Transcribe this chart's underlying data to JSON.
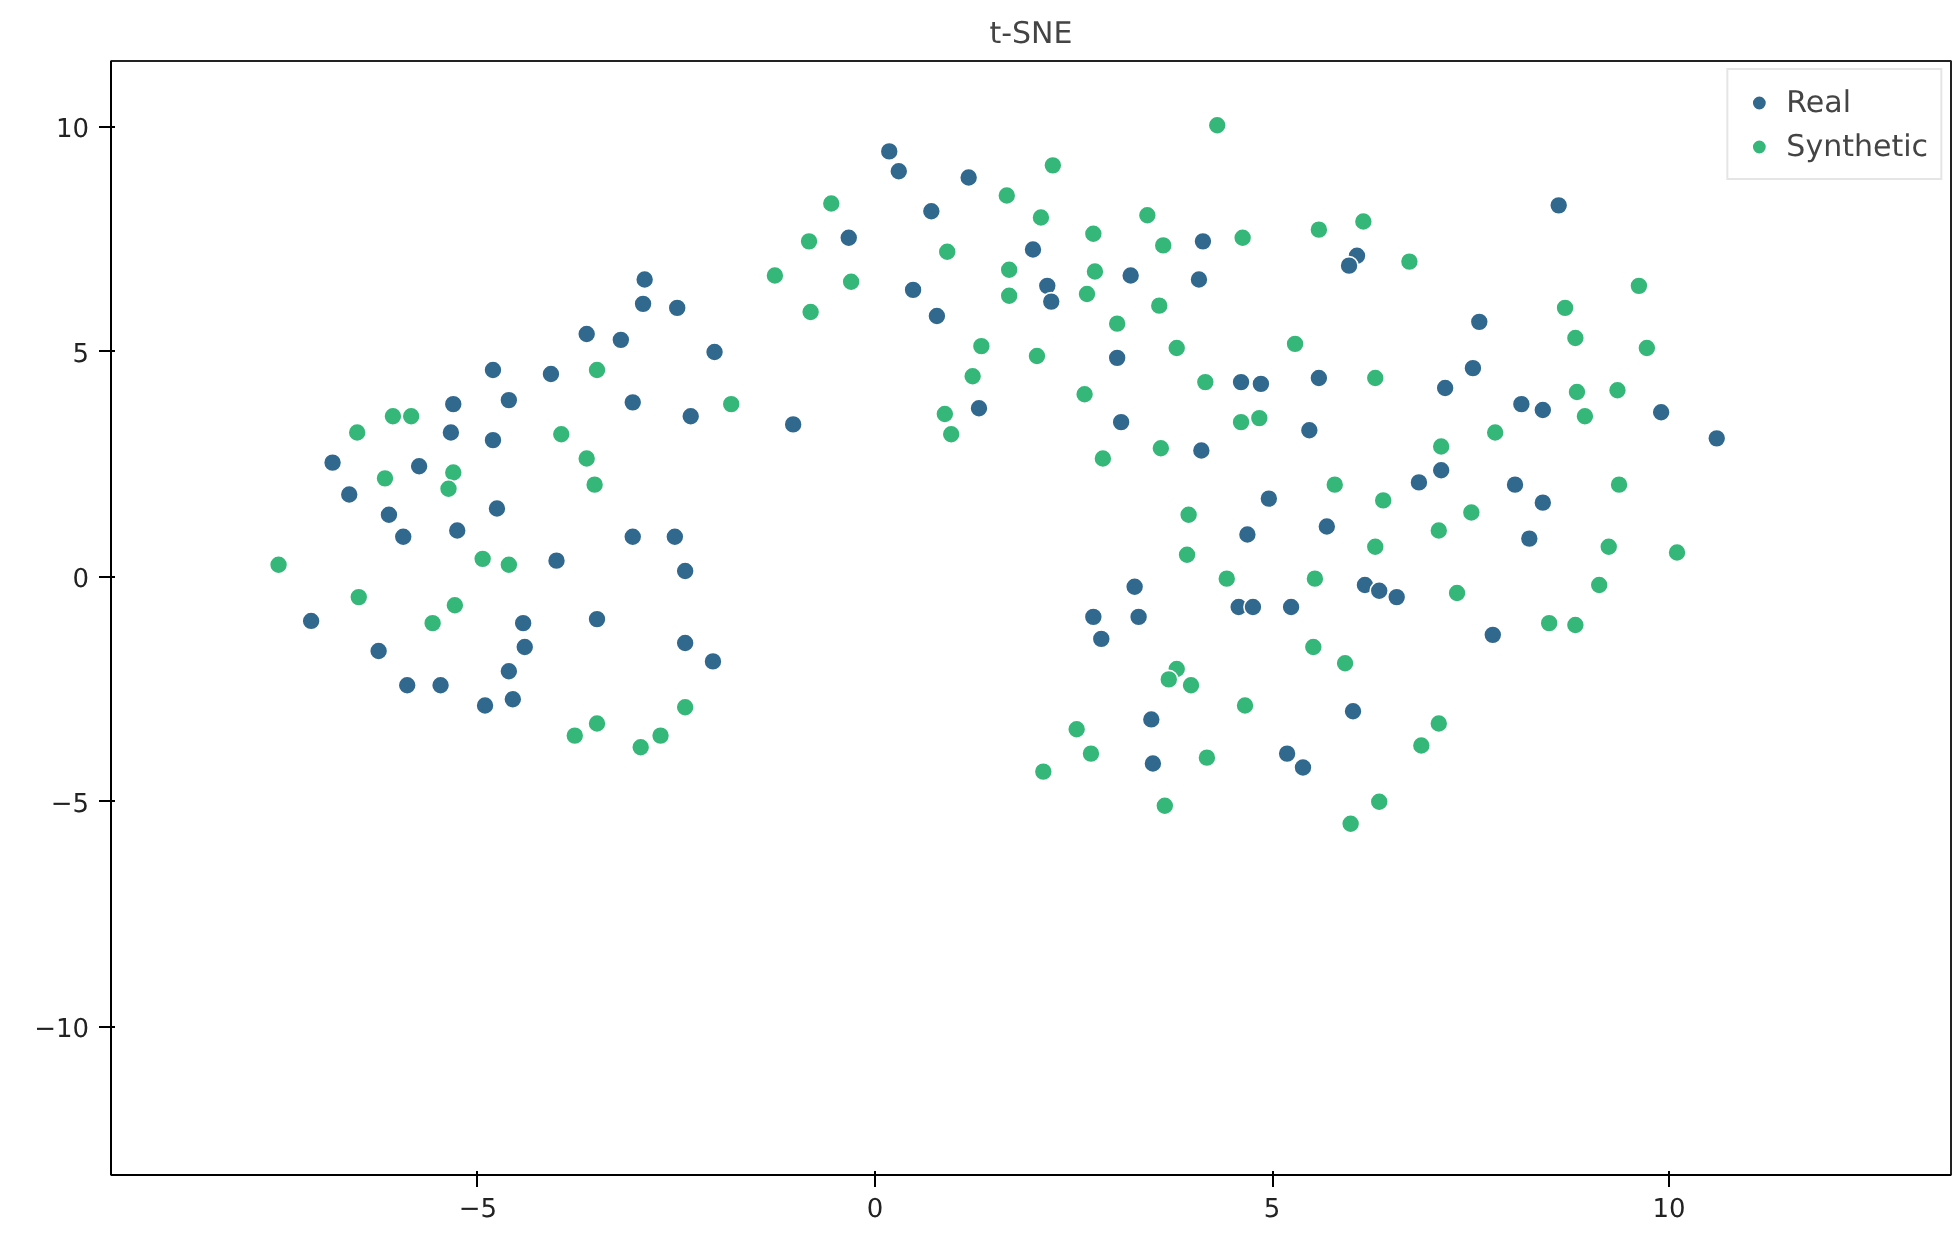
{
  "chart_data": {
    "type": "scatter",
    "title": "t-SNE",
    "xlim": [
      -9.62,
      13.55
    ],
    "ylim": [
      -13.3,
      11.47
    ],
    "xticks": [
      -5,
      0,
      5,
      10
    ],
    "yticks": [
      -10,
      -5,
      0,
      5,
      10
    ],
    "grid": false,
    "legend": "top right",
    "marker": "circle",
    "series": [
      {
        "name": "Real",
        "color": "#31688e",
        "x": [
          -2.9,
          -2.92,
          -2.49,
          -3.63,
          -3.2,
          -2.02,
          -4.81,
          -4.08,
          -5.31,
          -4.61,
          -3.05,
          -2.32,
          -1.03,
          -5.34,
          -4.81,
          -6.83,
          -5.74,
          -6.62,
          -6.12,
          -4.76,
          -5.94,
          -5.26,
          -3.05,
          -2.52,
          -4.01,
          -2.39,
          -7.1,
          -4.43,
          -3.5,
          -4.41,
          -6.25,
          -2.39,
          -2.04,
          -4.61,
          -5.89,
          -5.47,
          -4.91,
          -4.56,
          0.18,
          0.3,
          1.18,
          0.71,
          -0.33,
          1.99,
          2.17,
          2.22,
          0.48,
          0.78,
          3.22,
          4.13,
          4.08,
          3.05,
          4.61,
          4.86,
          5.59,
          1.31,
          3.1,
          4.11,
          5.47,
          4.96,
          6.85,
          7.13,
          8.06,
          4.69,
          5.69,
          3.27,
          2.75,
          3.32,
          2.85,
          4.58,
          4.76,
          5.24,
          6.17,
          6.35,
          6.57,
          7.78,
          3.48,
          3.5,
          6.02,
          5.19,
          5.39,
          8.61,
          6.07,
          5.97,
          7.61,
          7.53,
          7.18,
          8.14,
          8.41,
          9.9,
          10.6,
          8.41,
          8.24
        ],
        "values": [
          6.61,
          6.07,
          5.98,
          5.4,
          5.27,
          5.0,
          4.6,
          4.51,
          3.84,
          3.93,
          3.88,
          3.57,
          3.39,
          3.21,
          3.04,
          2.54,
          2.46,
          1.83,
          1.38,
          1.52,
          0.89,
          1.03,
          0.89,
          0.89,
          0.36,
          0.13,
          -0.98,
          -1.03,
          -0.94,
          -1.56,
          -1.65,
          -1.47,
          -1.88,
          -2.1,
          -2.41,
          -2.41,
          -2.86,
          -2.72,
          9.46,
          9.02,
          8.88,
          8.13,
          7.54,
          7.28,
          6.47,
          6.12,
          6.38,
          5.8,
          6.7,
          7.46,
          6.61,
          4.87,
          4.33,
          4.29,
          4.42,
          3.75,
          3.44,
          2.81,
          3.26,
          1.74,
          2.1,
          2.37,
          2.05,
          0.94,
          1.12,
          -0.22,
          -0.89,
          -0.89,
          -1.38,
          -0.67,
          -0.67,
          -0.67,
          -0.18,
          -0.31,
          -0.45,
          -1.29,
          -3.17,
          -4.15,
          -2.99,
          -3.93,
          -4.24,
          8.26,
          7.14,
          6.92,
          5.67,
          4.64,
          4.2,
          3.84,
          3.71,
          3.66,
          3.08,
          1.65,
          0.85
        ]
      },
      {
        "name": "Synthetic",
        "color": "#35b779",
        "x": [
          -1.26,
          -3.5,
          -1.81,
          -6.07,
          -5.84,
          -6.52,
          -3.95,
          -3.63,
          -6.17,
          -5.31,
          -5.37,
          -3.53,
          -7.51,
          -4.94,
          -4.61,
          -6.5,
          -5.29,
          -5.57,
          -2.39,
          -3.5,
          -3.78,
          -2.7,
          -2.95,
          4.31,
          2.24,
          -0.55,
          1.66,
          2.09,
          -0.83,
          3.43,
          2.75,
          3.63,
          4.63,
          5.59,
          -0.3,
          0.91,
          1.69,
          2.77,
          1.69,
          2.67,
          -0.81,
          3.58,
          3.05,
          1.34,
          3.8,
          5.29,
          1.23,
          2.04,
          4.16,
          2.64,
          0.88,
          0.96,
          4.61,
          4.84,
          3.6,
          2.87,
          5.79,
          3.95,
          7.13,
          6.4,
          7.51,
          7.1,
          6.3,
          3.93,
          4.43,
          5.54,
          7.33,
          5.52,
          5.92,
          3.8,
          3.7,
          3.98,
          4.66,
          2.54,
          2.72,
          2.12,
          4.18,
          7.1,
          6.88,
          3.65,
          6.35,
          5.99,
          6.15,
          6.73,
          9.62,
          8.69,
          8.82,
          9.72,
          6.3,
          8.84,
          9.35,
          8.94,
          7.81,
          9.37,
          9.24,
          10.1,
          9.12,
          8.49,
          8.82
        ],
        "values": [
          6.7,
          4.6,
          3.84,
          3.57,
          3.57,
          3.21,
          3.17,
          2.63,
          2.19,
          2.32,
          1.96,
          2.05,
          0.27,
          0.4,
          0.27,
          -0.45,
          -0.63,
          -1.03,
          -2.9,
          -3.26,
          -3.53,
          -3.53,
          -3.79,
          10.04,
          9.15,
          8.3,
          8.48,
          7.99,
          7.46,
          8.04,
          7.63,
          7.37,
          7.54,
          7.72,
          6.56,
          7.23,
          6.83,
          6.79,
          6.25,
          6.29,
          5.89,
          6.03,
          5.63,
          5.13,
          5.09,
          5.18,
          4.46,
          4.91,
          4.33,
          4.06,
          3.62,
          3.17,
          3.44,
          3.53,
          2.86,
          2.63,
          2.05,
          1.38,
          2.9,
          1.7,
          1.43,
          1.03,
          0.67,
          0.49,
          -0.04,
          -0.04,
          -0.36,
          -1.56,
          -1.92,
          -2.05,
          -2.28,
          -2.41,
          -2.86,
          -3.39,
          -3.93,
          -4.33,
          -4.02,
          -3.26,
          -3.75,
          -5.09,
          -5.0,
          -5.49,
          7.9,
          7.01,
          6.47,
          5.98,
          5.31,
          5.09,
          4.42,
          4.11,
          4.15,
          3.57,
          3.21,
          2.05,
          0.67,
          0.54,
          -0.18,
          -1.03,
          -1.07
        ]
      }
    ]
  }
}
